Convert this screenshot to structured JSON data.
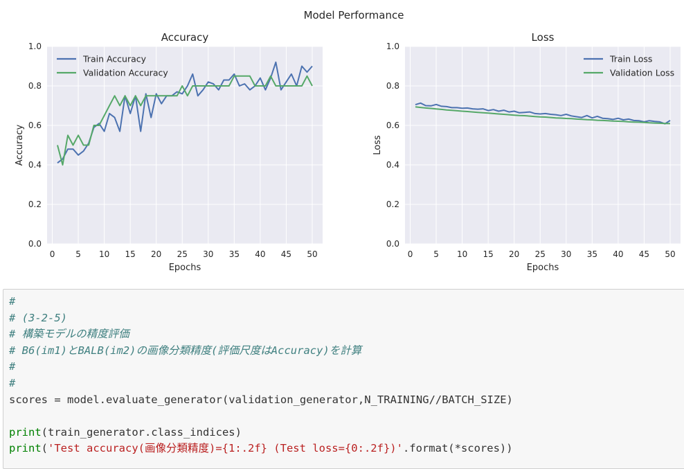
{
  "figure": {
    "suptitle": "Model Performance"
  },
  "chart_data": [
    {
      "type": "line",
      "title": "Accuracy",
      "xlabel": "Epochs",
      "ylabel": "Accuracy",
      "xlim": [
        -1,
        52
      ],
      "ylim": [
        0.0,
        1.0
      ],
      "xticks": [
        "0",
        "5",
        "10",
        "15",
        "20",
        "25",
        "30",
        "35",
        "40",
        "45",
        "50"
      ],
      "yticks": [
        "0.0",
        "0.2",
        "0.4",
        "0.6",
        "0.8",
        "1.0"
      ],
      "grid": true,
      "legend_position": "top-left",
      "x": [
        1,
        2,
        3,
        4,
        5,
        6,
        7,
        8,
        9,
        10,
        11,
        12,
        13,
        14,
        15,
        16,
        17,
        18,
        19,
        20,
        21,
        22,
        23,
        24,
        25,
        26,
        27,
        28,
        29,
        30,
        31,
        32,
        33,
        34,
        35,
        36,
        37,
        38,
        39,
        40,
        41,
        42,
        43,
        44,
        45,
        46,
        47,
        48,
        49,
        50
      ],
      "series": [
        {
          "name": "Train Accuracy",
          "color": "#4c72b0",
          "values": [
            0.41,
            0.43,
            0.48,
            0.48,
            0.45,
            0.47,
            0.51,
            0.59,
            0.61,
            0.57,
            0.66,
            0.64,
            0.57,
            0.75,
            0.66,
            0.75,
            0.57,
            0.76,
            0.64,
            0.76,
            0.71,
            0.75,
            0.75,
            0.77,
            0.76,
            0.8,
            0.86,
            0.75,
            0.78,
            0.82,
            0.81,
            0.78,
            0.83,
            0.83,
            0.86,
            0.8,
            0.81,
            0.78,
            0.8,
            0.84,
            0.78,
            0.84,
            0.92,
            0.78,
            0.82,
            0.86,
            0.8,
            0.9,
            0.87,
            0.9
          ]
        },
        {
          "name": "Validation Accuracy",
          "color": "#55a868",
          "values": [
            0.5,
            0.4,
            0.55,
            0.5,
            0.55,
            0.5,
            0.5,
            0.6,
            0.6,
            0.65,
            0.7,
            0.75,
            0.7,
            0.75,
            0.7,
            0.75,
            0.7,
            0.75,
            0.75,
            0.75,
            0.75,
            0.75,
            0.75,
            0.75,
            0.8,
            0.75,
            0.8,
            0.8,
            0.8,
            0.8,
            0.8,
            0.8,
            0.8,
            0.8,
            0.85,
            0.85,
            0.85,
            0.85,
            0.8,
            0.8,
            0.8,
            0.85,
            0.8,
            0.8,
            0.8,
            0.8,
            0.8,
            0.8,
            0.85,
            0.8
          ]
        }
      ]
    },
    {
      "type": "line",
      "title": "Loss",
      "xlabel": "Epochs",
      "ylabel": "Loss",
      "xlim": [
        -1,
        52
      ],
      "ylim": [
        0.0,
        1.0
      ],
      "xticks": [
        "0",
        "5",
        "10",
        "15",
        "20",
        "25",
        "30",
        "35",
        "40",
        "45",
        "50"
      ],
      "yticks": [
        "0.0",
        "0.2",
        "0.4",
        "0.6",
        "0.8",
        "1.0"
      ],
      "grid": true,
      "legend_position": "top-right",
      "x": [
        1,
        2,
        3,
        4,
        5,
        6,
        7,
        8,
        9,
        10,
        11,
        12,
        13,
        14,
        15,
        16,
        17,
        18,
        19,
        20,
        21,
        22,
        23,
        24,
        25,
        26,
        27,
        28,
        29,
        30,
        31,
        32,
        33,
        34,
        35,
        36,
        37,
        38,
        39,
        40,
        41,
        42,
        43,
        44,
        45,
        46,
        47,
        48,
        49,
        50
      ],
      "series": [
        {
          "name": "Train Loss",
          "color": "#4c72b0",
          "values": [
            0.705,
            0.713,
            0.7,
            0.699,
            0.706,
            0.697,
            0.695,
            0.69,
            0.69,
            0.687,
            0.688,
            0.684,
            0.682,
            0.684,
            0.675,
            0.68,
            0.672,
            0.677,
            0.668,
            0.672,
            0.664,
            0.666,
            0.668,
            0.66,
            0.658,
            0.66,
            0.656,
            0.654,
            0.65,
            0.656,
            0.648,
            0.644,
            0.64,
            0.65,
            0.638,
            0.646,
            0.636,
            0.634,
            0.63,
            0.636,
            0.628,
            0.632,
            0.625,
            0.624,
            0.618,
            0.624,
            0.62,
            0.618,
            0.608,
            0.625
          ]
        },
        {
          "name": "Validation Loss",
          "color": "#55a868",
          "values": [
            0.694,
            0.691,
            0.688,
            0.686,
            0.683,
            0.681,
            0.678,
            0.676,
            0.674,
            0.672,
            0.67,
            0.668,
            0.666,
            0.664,
            0.662,
            0.66,
            0.658,
            0.656,
            0.654,
            0.652,
            0.65,
            0.649,
            0.647,
            0.645,
            0.643,
            0.642,
            0.64,
            0.638,
            0.637,
            0.635,
            0.634,
            0.632,
            0.631,
            0.629,
            0.628,
            0.626,
            0.625,
            0.624,
            0.622,
            0.621,
            0.62,
            0.618,
            0.617,
            0.616,
            0.615,
            0.613,
            0.612,
            0.611,
            0.61,
            0.609
          ]
        }
      ]
    }
  ],
  "code_cell": {
    "lines": [
      {
        "cls": "c-comment",
        "parts": [
          {
            "cls": "c-comment",
            "text": "#"
          }
        ]
      },
      {
        "cls": "c-comment",
        "parts": [
          {
            "cls": "c-comment",
            "text": "# (3-2-5)"
          }
        ]
      },
      {
        "cls": "c-comment",
        "parts": [
          {
            "cls": "c-comment",
            "text": "# 構築モデルの精度評価"
          }
        ]
      },
      {
        "cls": "c-comment",
        "parts": [
          {
            "cls": "c-comment",
            "text": "# B6(im1)とBALB(im2)の画像分類精度(評価尺度はAccuracy)を計算"
          }
        ]
      },
      {
        "cls": "c-comment",
        "parts": [
          {
            "cls": "c-comment",
            "text": "#"
          }
        ]
      },
      {
        "cls": "c-comment",
        "parts": [
          {
            "cls": "c-comment",
            "text": "#"
          }
        ]
      },
      {
        "cls": "c-plain",
        "parts": [
          {
            "cls": "c-plain",
            "text": "scores = model.evaluate_generator(validation_generator,N_TRAINING//BATCH_SIZE)"
          }
        ]
      },
      {
        "cls": "c-plain",
        "parts": [
          {
            "cls": "c-plain",
            "text": ""
          }
        ]
      },
      {
        "cls": "c-plain",
        "parts": [
          {
            "cls": "c-builtin",
            "text": "print"
          },
          {
            "cls": "c-plain",
            "text": "(train_generator.class_indices)"
          }
        ]
      },
      {
        "cls": "c-plain",
        "parts": [
          {
            "cls": "c-builtin",
            "text": "print"
          },
          {
            "cls": "c-plain",
            "text": "("
          },
          {
            "cls": "c-string",
            "text": "'Test accuracy(画像分類精度)={1:.2f} (Test loss={0:.2f})'"
          },
          {
            "cls": "c-plain",
            "text": ".format(*scores))"
          }
        ]
      }
    ]
  }
}
